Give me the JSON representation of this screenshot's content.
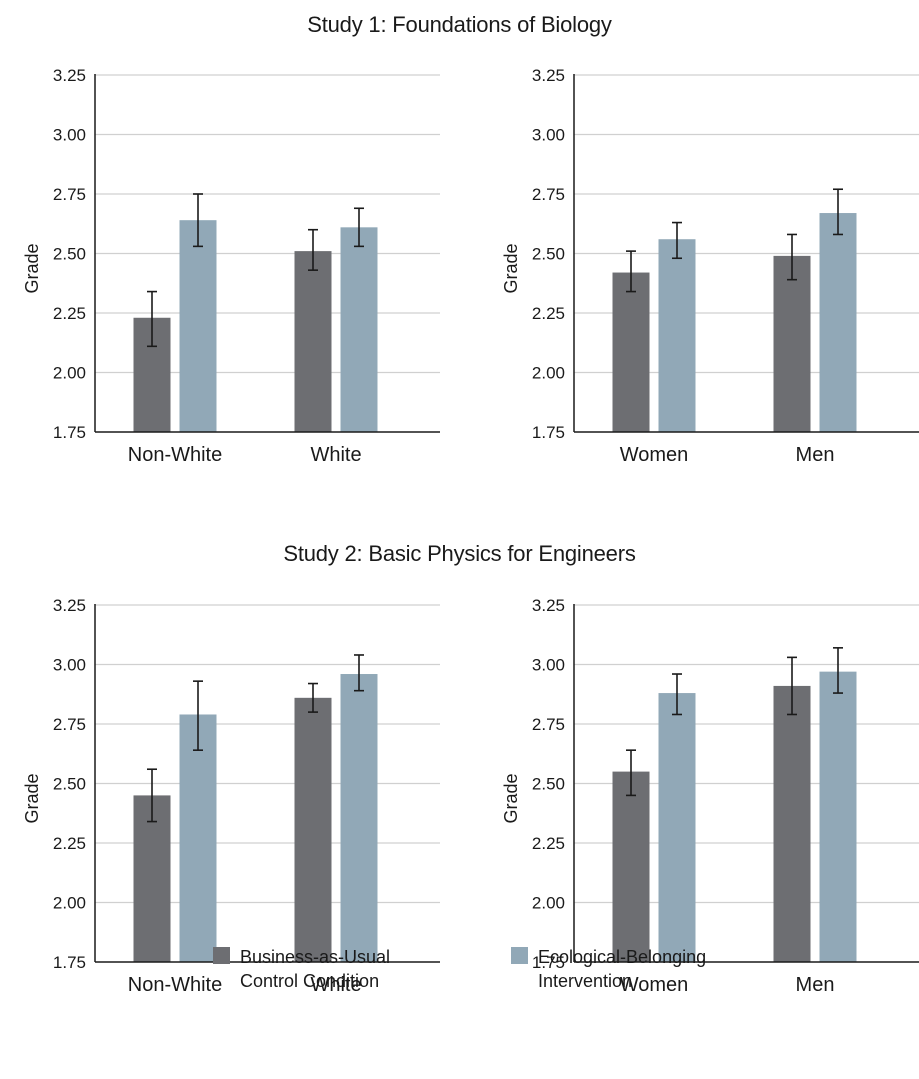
{
  "colors": {
    "control": "#6d6e72",
    "intervention": "#91a8b7",
    "grid": "#d0d0d0",
    "axis": "#1a1a1a"
  },
  "chart_data": [
    {
      "type": "bar",
      "study_title": "Study 1: Foundations of Biology",
      "ylabel": "Grade",
      "ylim": [
        1.75,
        3.25
      ],
      "yticks": [
        "1.75",
        "2.00",
        "2.25",
        "2.50",
        "2.75",
        "3.00",
        "3.25"
      ],
      "categories": [
        "Non-White",
        "White"
      ],
      "series": [
        {
          "name": "Business-as-Usual Control Condition",
          "values": [
            2.23,
            2.51
          ],
          "err_low": [
            2.11,
            2.43
          ],
          "err_high": [
            2.34,
            2.6
          ]
        },
        {
          "name": "Ecological-Belonging Intervention",
          "values": [
            2.64,
            2.61
          ],
          "err_low": [
            2.53,
            2.53
          ],
          "err_high": [
            2.75,
            2.69
          ]
        }
      ]
    },
    {
      "type": "bar",
      "study_title": "Study 1: Foundations of Biology",
      "ylabel": "Grade",
      "ylim": [
        1.75,
        3.25
      ],
      "yticks": [
        "1.75",
        "2.00",
        "2.25",
        "2.50",
        "2.75",
        "3.00",
        "3.25"
      ],
      "categories": [
        "Women",
        "Men"
      ],
      "series": [
        {
          "name": "Business-as-Usual Control Condition",
          "values": [
            2.42,
            2.49
          ],
          "err_low": [
            2.34,
            2.39
          ],
          "err_high": [
            2.51,
            2.58
          ]
        },
        {
          "name": "Ecological-Belonging Intervention",
          "values": [
            2.56,
            2.67
          ],
          "err_low": [
            2.48,
            2.58
          ],
          "err_high": [
            2.63,
            2.77
          ]
        }
      ]
    },
    {
      "type": "bar",
      "study_title": "Study 2: Basic Physics for Engineers",
      "ylabel": "Grade",
      "ylim": [
        1.75,
        3.25
      ],
      "yticks": [
        "1.75",
        "2.00",
        "2.25",
        "2.50",
        "2.75",
        "3.00",
        "3.25"
      ],
      "categories": [
        "Non-White",
        "White"
      ],
      "series": [
        {
          "name": "Business-as-Usual Control Condition",
          "values": [
            2.45,
            2.86
          ],
          "err_low": [
            2.34,
            2.8
          ],
          "err_high": [
            2.56,
            2.92
          ]
        },
        {
          "name": "Ecological-Belonging Intervention",
          "values": [
            2.79,
            2.96
          ],
          "err_low": [
            2.64,
            2.89
          ],
          "err_high": [
            2.93,
            3.04
          ]
        }
      ]
    },
    {
      "type": "bar",
      "study_title": "Study 2: Basic Physics for Engineers",
      "ylabel": "Grade",
      "ylim": [
        1.75,
        3.25
      ],
      "yticks": [
        "1.75",
        "2.00",
        "2.25",
        "2.50",
        "2.75",
        "3.00",
        "3.25"
      ],
      "categories": [
        "Women",
        "Men"
      ],
      "series": [
        {
          "name": "Business-as-Usual Control Condition",
          "values": [
            2.55,
            2.91
          ],
          "err_low": [
            2.45,
            2.79
          ],
          "err_high": [
            2.64,
            3.03
          ]
        },
        {
          "name": "Ecological-Belonging Intervention",
          "values": [
            2.88,
            2.97
          ],
          "err_low": [
            2.79,
            2.88
          ],
          "err_high": [
            2.96,
            3.07
          ]
        }
      ]
    }
  ],
  "legend": {
    "control_label": "Business-as-Usual\nControl Condition",
    "intervention_label": "Ecological-Belonging\nIntervention"
  }
}
